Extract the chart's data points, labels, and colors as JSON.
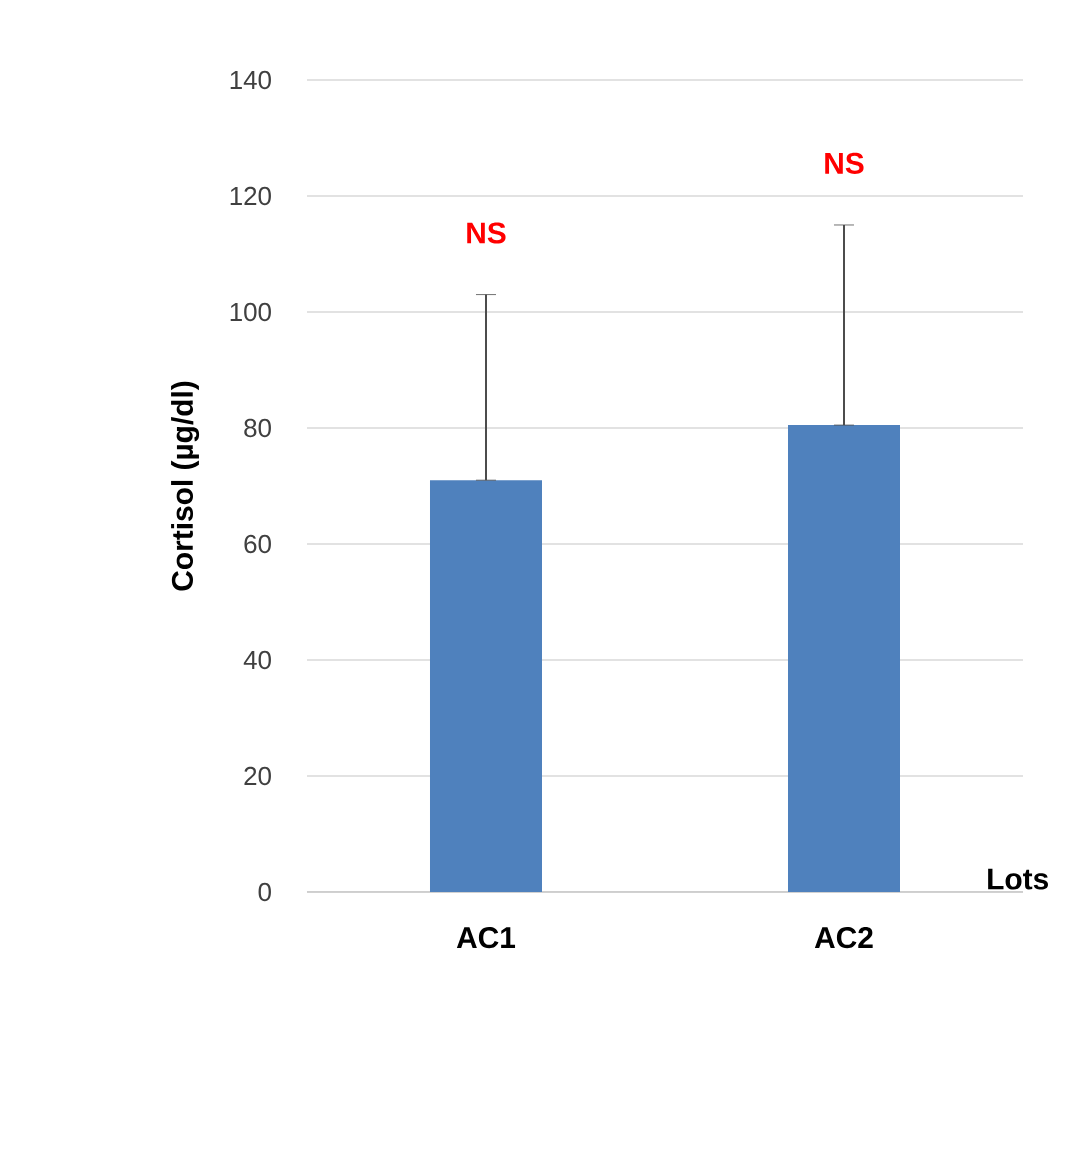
{
  "chart_data": {
    "type": "bar",
    "ylabel": "Cortisol (µg/dl)",
    "xlabel": "Lots",
    "categories": [
      "AC1",
      "AC2"
    ],
    "values": [
      71,
      80.5
    ],
    "color": "#4f81bd",
    "errors": [
      [
        71,
        103
      ],
      [
        80.5,
        115
      ]
    ],
    "ylim": [
      0,
      140
    ],
    "yticks": [
      0,
      20,
      40,
      60,
      80,
      100,
      120,
      140
    ],
    "grid": "y",
    "annotations": [
      "NS",
      "NS"
    ]
  }
}
